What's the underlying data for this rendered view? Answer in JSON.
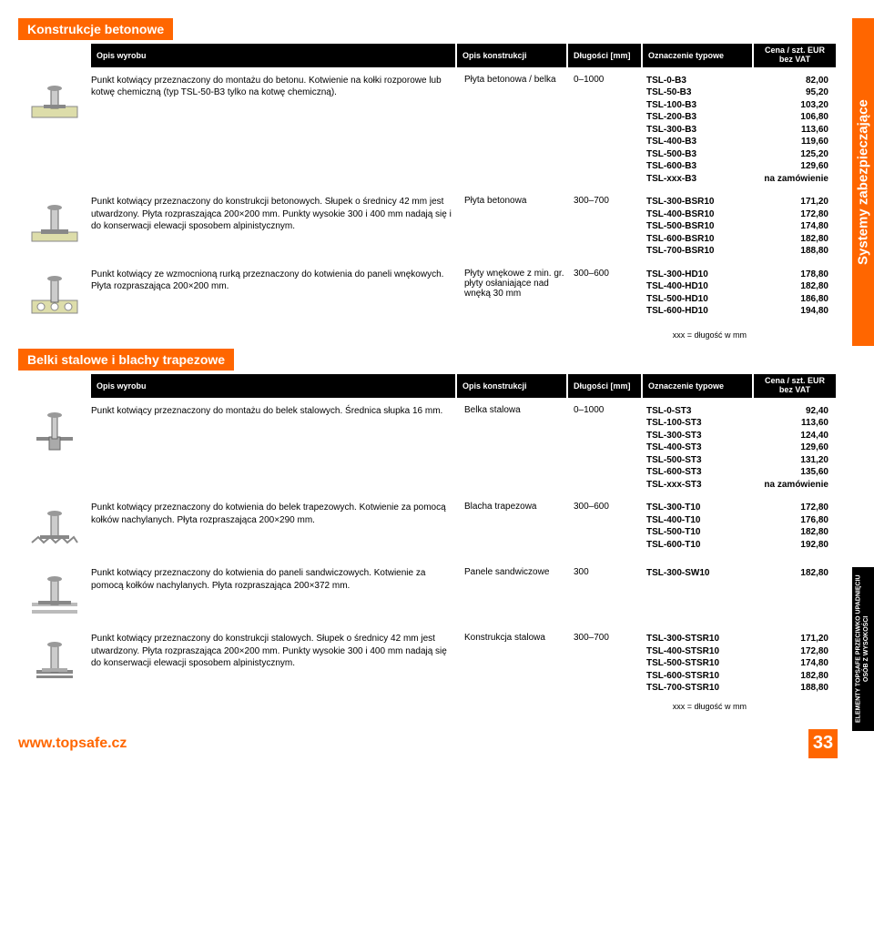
{
  "side_orange": "Systemy zabezpieczające",
  "side_black": "ELEMENTY TOPSAFE PRZECIWKO UPADNIĘCIU OSÓB Z WYSOKOŚCI",
  "footer": {
    "url": "www.topsafe.cz",
    "page": "33"
  },
  "headers": {
    "opis_wyrobu": "Opis wyrobu",
    "opis_konstr": "Opis konstrukcji",
    "dlugosc": "Długości [mm]",
    "oznaczenie": "Oznaczenie typowe",
    "cena": "Cena / szt. EUR bez VAT"
  },
  "footnote": "xxx = długość w mm",
  "section1": {
    "title": "Konstrukcje betonowe",
    "rows": [
      {
        "desc": "Punkt kotwiący przeznaczony do montażu do betonu. Kotwienie na kołki rozporowe lub kotwę chemiczną (typ TSL-50-B3 tylko na kotwę chemiczną).",
        "const": "Płyta betonowa / belka",
        "len": "0–1000",
        "codes": [
          "TSL-0-B3",
          "TSL-50-B3",
          "TSL-100-B3",
          "TSL-200-B3",
          "TSL-300-B3",
          "TSL-400-B3",
          "TSL-500-B3",
          "TSL-600-B3",
          "TSL-xxx-B3"
        ],
        "prices": [
          "82,00",
          "95,20",
          "103,20",
          "106,80",
          "113,60",
          "119,60",
          "125,20",
          "129,60",
          "na zamówienie"
        ]
      },
      {
        "desc": "Punkt kotwiący przeznaczony do konstrukcji betonowych. Słupek o średnicy 42 mm jest utwardzony. Płyta rozpraszająca 200×200 mm. Punkty wysokie 300 i 400 mm nadają się i do konserwacji elewacji sposobem alpinistycznym.",
        "const": "Płyta betonowa",
        "len": "300–700",
        "codes": [
          "TSL-300-BSR10",
          "TSL-400-BSR10",
          "TSL-500-BSR10",
          "TSL-600-BSR10",
          "TSL-700-BSR10"
        ],
        "prices": [
          "171,20",
          "172,80",
          "174,80",
          "182,80",
          "188,80"
        ]
      },
      {
        "desc": "Punkt kotwiący ze wzmocnioną rurką przeznaczony do kotwienia do paneli wnękowych. Płyta rozpraszająca 200×200 mm.",
        "const": "Płyty wnękowe z min. gr. płyty osłaniające nad wnęką 30 mm",
        "len": "300–600",
        "codes": [
          "TSL-300-HD10",
          "TSL-400-HD10",
          "TSL-500-HD10",
          "TSL-600-HD10"
        ],
        "prices": [
          "178,80",
          "182,80",
          "186,80",
          "194,80"
        ]
      }
    ]
  },
  "section2": {
    "title": "Belki stalowe i blachy trapezowe",
    "rows": [
      {
        "desc": "Punkt kotwiący przeznaczony do montażu do belek stalowych. Średnica słupka 16 mm.",
        "const": "Belka stalowa",
        "len": "0–1000",
        "codes": [
          "TSL-0-ST3",
          "TSL-100-ST3",
          "TSL-300-ST3",
          "TSL-400-ST3",
          "TSL-500-ST3",
          "TSL-600-ST3",
          "TSL-xxx-ST3"
        ],
        "prices": [
          "92,40",
          "113,60",
          "124,40",
          "129,60",
          "131,20",
          "135,60",
          "na zamówienie"
        ]
      },
      {
        "desc": "Punkt kotwiący przeznaczony do kotwienia do belek trapezowych. Kotwienie za pomocą kołków nachylanych. Płyta rozpraszająca 200×290 mm.",
        "const": "Blacha trapezowa",
        "len": "300–600",
        "codes": [
          "TSL-300-T10",
          "TSL-400-T10",
          "TSL-500-T10",
          "TSL-600-T10"
        ],
        "prices": [
          "172,80",
          "176,80",
          "182,80",
          "192,80"
        ]
      },
      {
        "desc": "Punkt kotwiący przeznaczony do kotwienia do paneli sandwiczowych. Kotwienie za pomocą kołków nachylanych. Płyta rozpraszająca 200×372 mm.",
        "const": "Panele sandwiczowe",
        "len": "300",
        "codes": [
          "TSL-300-SW10"
        ],
        "prices": [
          "182,80"
        ]
      },
      {
        "desc": "Punkt kotwiący przeznaczony do konstrukcji stalowych. Słupek o średnicy 42 mm jest utwardzony. Płyta rozpraszająca 200×200 mm. Punkty wysokie 300 i 400 mm nadają się do konserwacji elewacji sposobem alpinistycznym.",
        "const": "Konstrukcja stalowa",
        "len": "300–700",
        "codes": [
          "TSL-300-STSR10",
          "TSL-400-STSR10",
          "TSL-500-STSR10",
          "TSL-600-STSR10",
          "TSL-700-STSR10"
        ],
        "prices": [
          "171,20",
          "172,80",
          "174,80",
          "182,80",
          "188,80"
        ]
      }
    ]
  }
}
